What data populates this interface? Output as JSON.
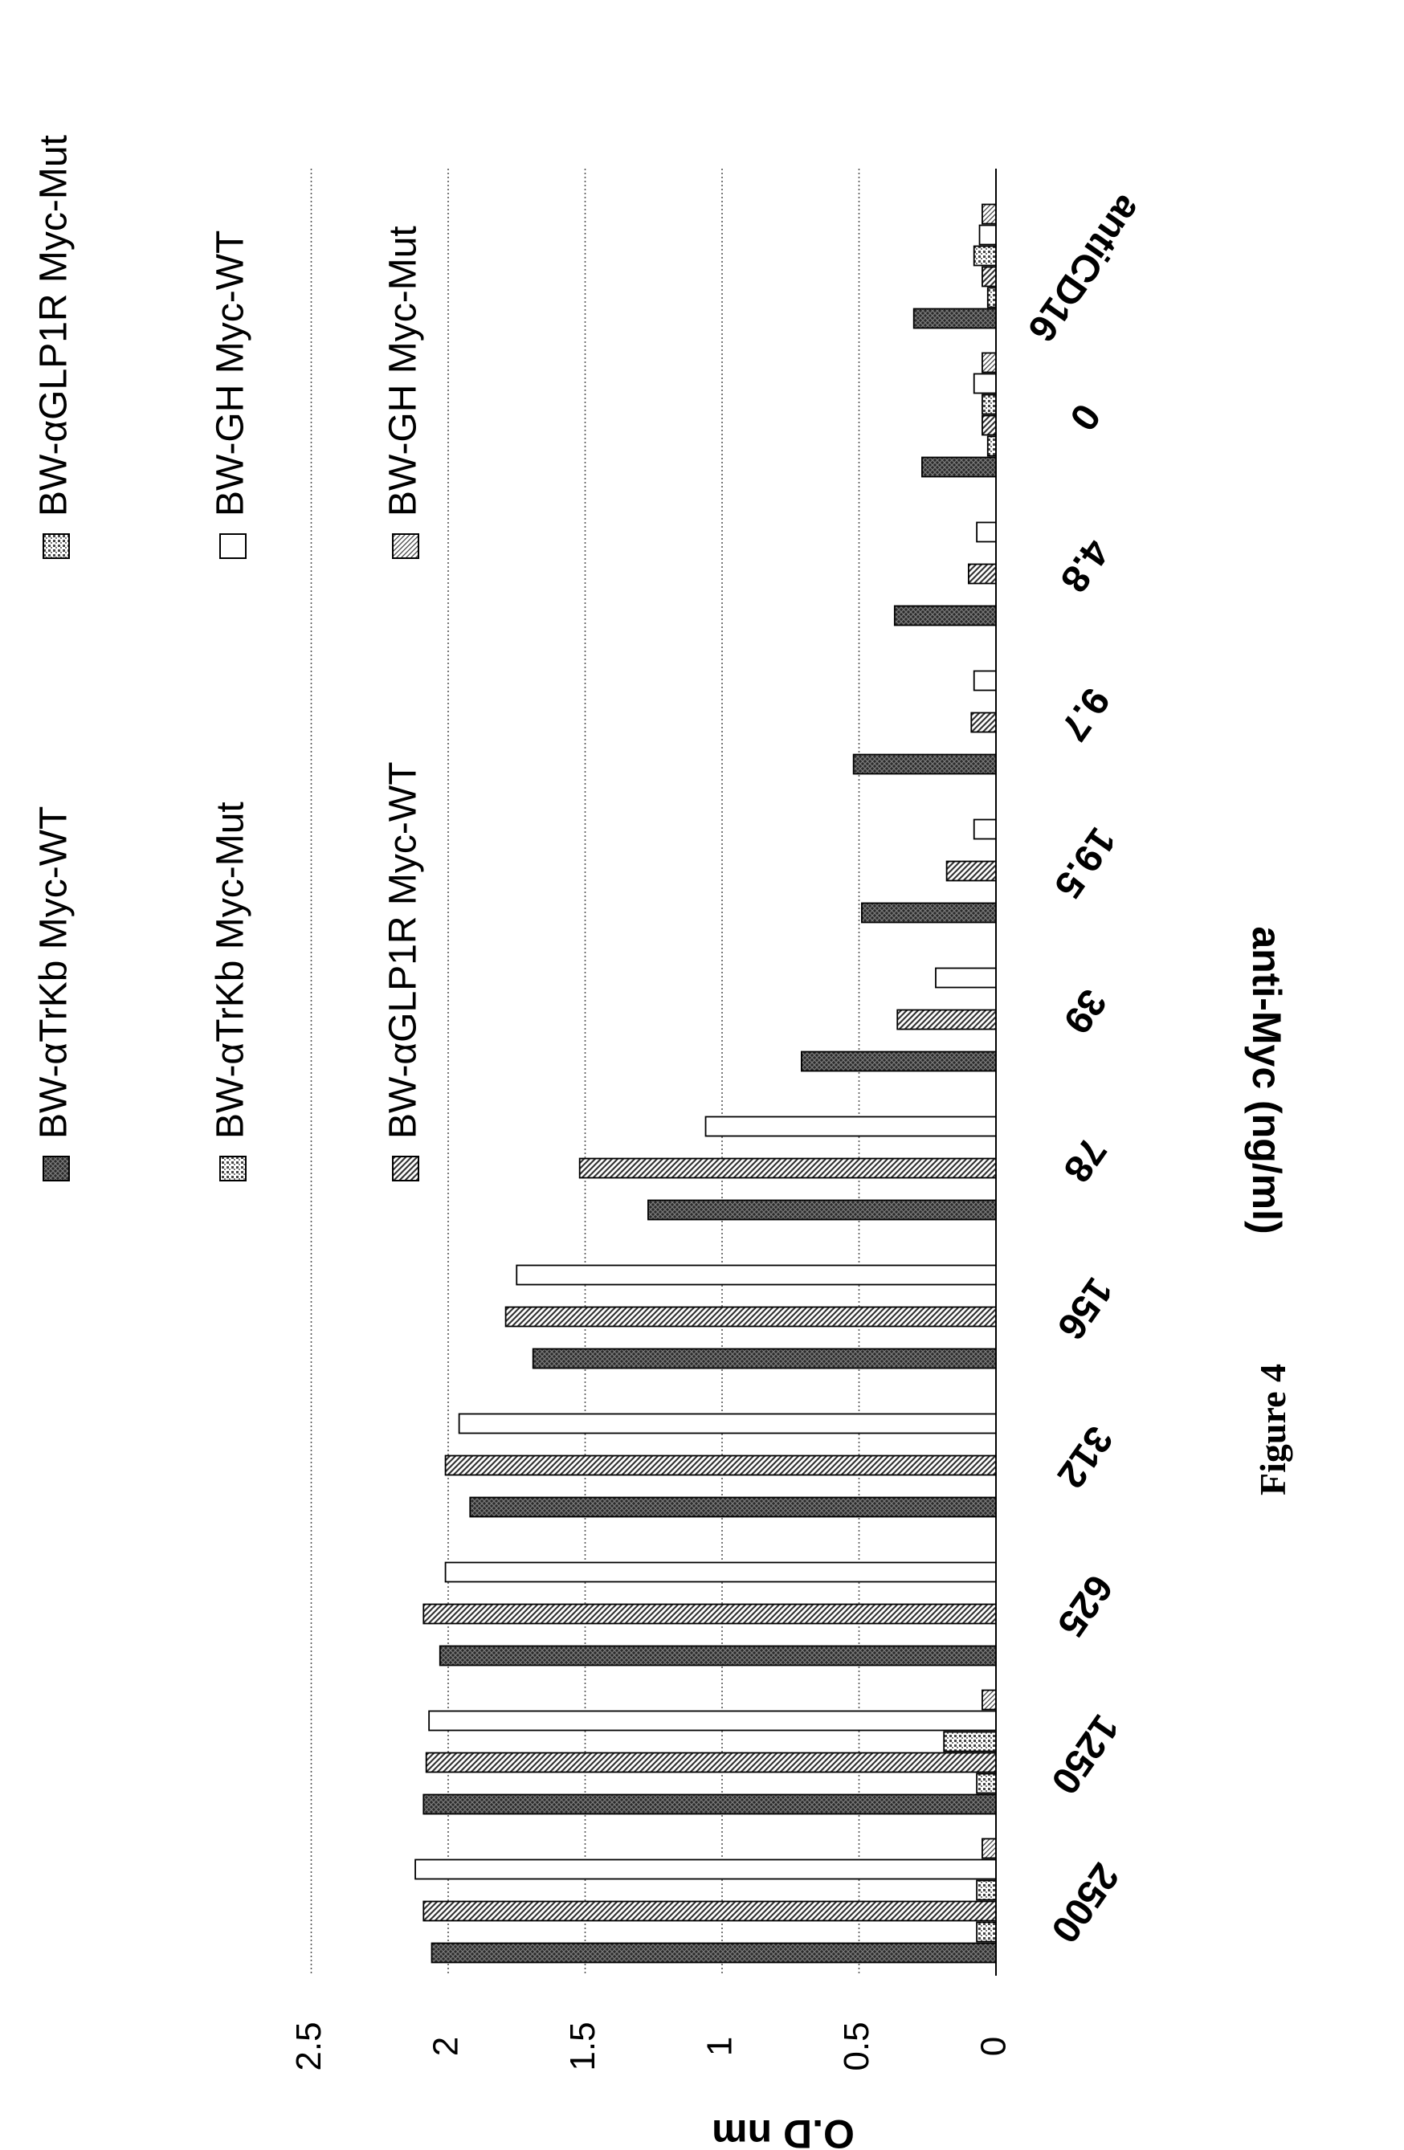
{
  "figure_label": "Figure 4",
  "chart_data": {
    "type": "bar",
    "orientation": "rotated-90-ccw",
    "xlabel": "anti-Myc (ng/ml)",
    "ylabel": "O.D nm",
    "ylim": [
      0,
      2.5
    ],
    "yticks": [
      "0",
      "0.5",
      "1",
      "1.5",
      "2",
      "2.5"
    ],
    "grid": true,
    "legend_position": "top",
    "categories": [
      "2500",
      "1250",
      "625",
      "312",
      "156",
      "78",
      "39",
      "19.5",
      "9.7",
      "4.8",
      "0",
      "antiCD16"
    ],
    "series": [
      {
        "name": "BW-αTrKb Myc-WT",
        "pattern": "dark-cross",
        "values": [
          2.06,
          2.09,
          2.03,
          1.92,
          1.69,
          1.27,
          0.71,
          0.49,
          0.52,
          0.37,
          0.27,
          0.3
        ]
      },
      {
        "name": "BW-αTrKb Myc-Mut",
        "pattern": "light-dots",
        "values": [
          0.07,
          0.07,
          0.0,
          0.0,
          0.0,
          0.0,
          0.0,
          0.0,
          0.0,
          0.0,
          0.03,
          0.03
        ]
      },
      {
        "name": "BW-αGLP1R Myc-WT",
        "pattern": "diagonal",
        "values": [
          2.09,
          2.08,
          2.09,
          2.01,
          1.79,
          1.52,
          0.36,
          0.18,
          0.09,
          0.1,
          0.05,
          0.05
        ]
      },
      {
        "name": "BW-αGLP1R Myc-Mut",
        "pattern": "light-dots",
        "values": [
          0.07,
          0.19,
          0.0,
          0.0,
          0.0,
          0.0,
          0.0,
          0.0,
          0.0,
          0.0,
          0.05,
          0.08
        ]
      },
      {
        "name": "BW-GH Myc-WT",
        "pattern": "white",
        "values": [
          2.12,
          2.07,
          2.01,
          1.96,
          1.75,
          1.06,
          0.22,
          0.08,
          0.08,
          0.07,
          0.08,
          0.06
        ]
      },
      {
        "name": "BW-GH Myc-Mut",
        "pattern": "light-diagonal",
        "values": [
          0.05,
          0.05,
          0.0,
          0.0,
          0.0,
          0.0,
          0.0,
          0.0,
          0.0,
          0.0,
          0.05,
          0.05
        ]
      }
    ]
  }
}
